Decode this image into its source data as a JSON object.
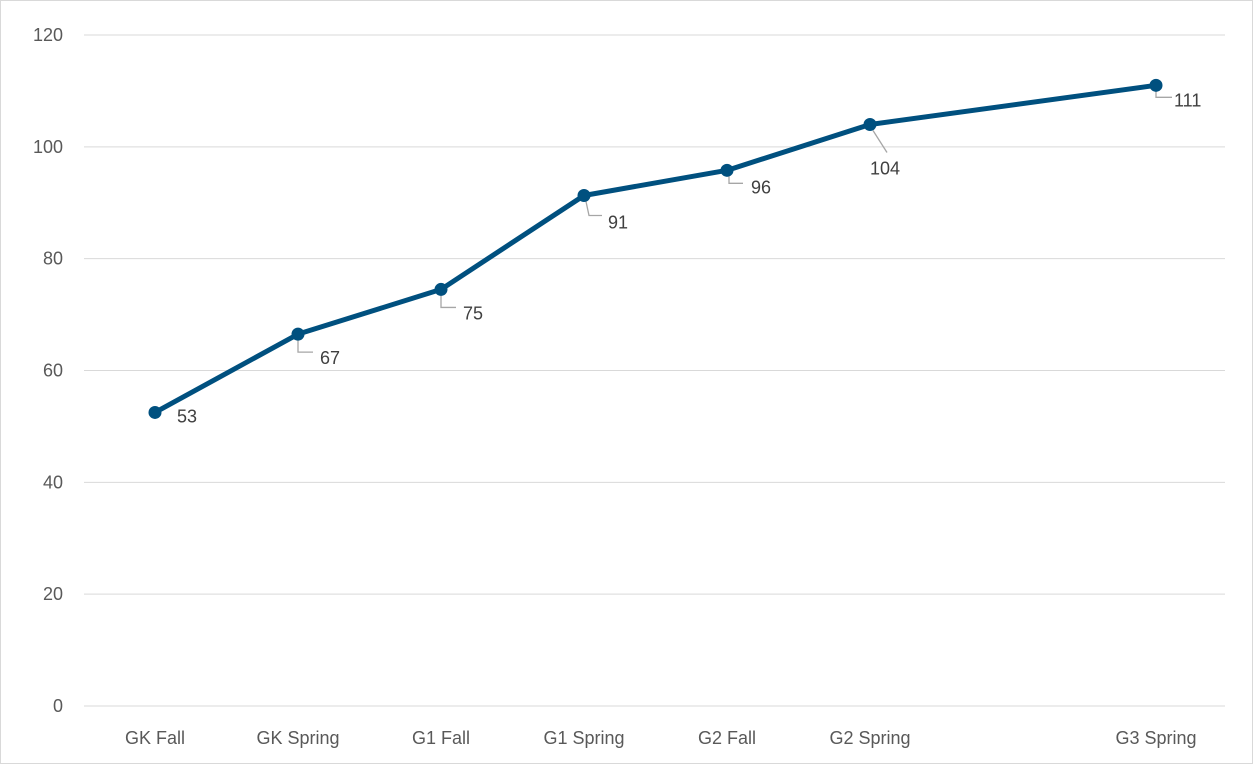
{
  "chart_data": {
    "type": "line",
    "categories": [
      "GK Fall",
      "GK Spring",
      "G1 Fall",
      "G1 Spring",
      "G2 Fall",
      "G2 Spring",
      "G3 Spring"
    ],
    "x_positions": [
      0,
      1,
      2,
      3,
      4,
      5,
      7
    ],
    "series": [
      {
        "values": [
          53,
          67,
          75,
          91,
          96,
          104,
          111
        ],
        "plotted_values": [
          52.5,
          66.5,
          74.5,
          91.3,
          95.8,
          104,
          111
        ],
        "color": "#00507f"
      }
    ],
    "data_labels": [
      "53",
      "67",
      "75",
      "91",
      "96",
      "104",
      "111"
    ],
    "y_ticks": [
      "0",
      "20",
      "40",
      "60",
      "80",
      "100",
      "120"
    ],
    "ylim": [
      0,
      120
    ],
    "grid": true,
    "legend": "none",
    "title": "",
    "xlabel": "",
    "ylabel": ""
  }
}
